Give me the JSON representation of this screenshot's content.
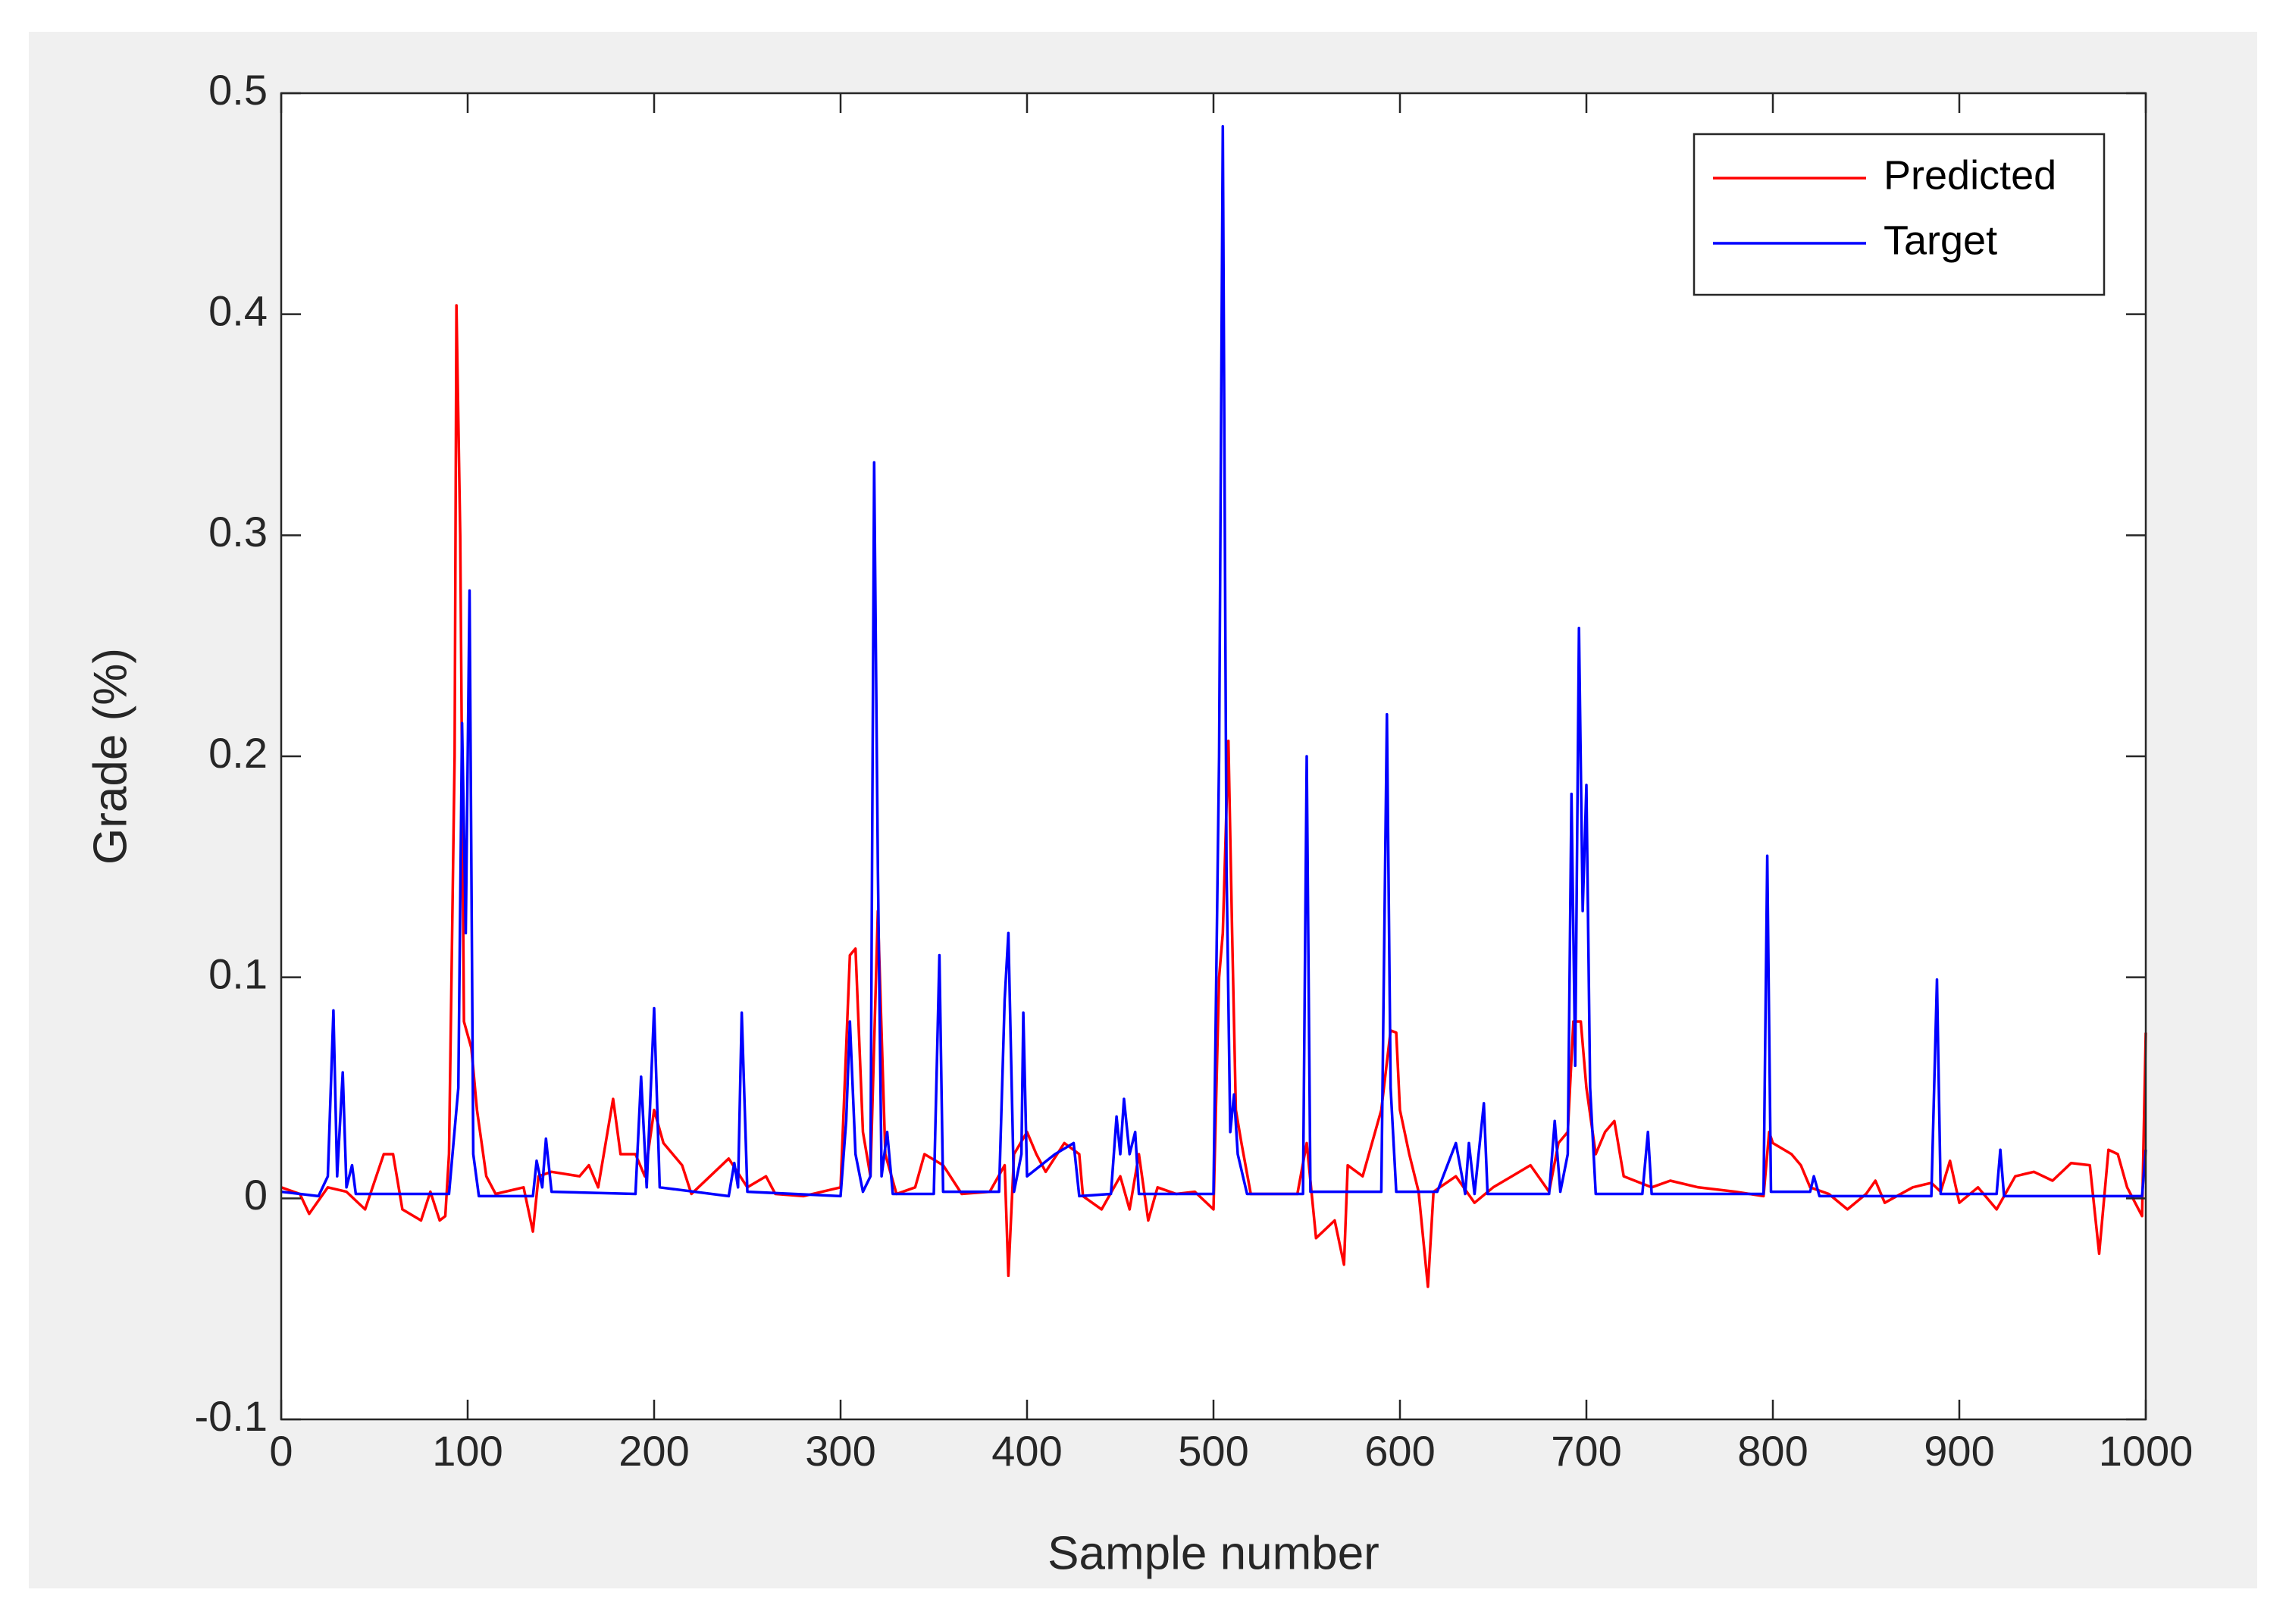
{
  "chart_data": {
    "type": "line",
    "xlabel": "Sample number",
    "ylabel": "Grade (%)",
    "xlim": [
      0,
      1000
    ],
    "xticks": [
      0,
      100,
      200,
      300,
      400,
      500,
      600,
      700,
      800,
      900,
      1000
    ],
    "ylim": [
      -0.1,
      0.5
    ],
    "yticks": [
      -0.1,
      0,
      0.1,
      0.2,
      0.3,
      0.4,
      0.5
    ],
    "legend": "upper right",
    "series": [
      {
        "name": "Predicted",
        "color": "#ff0000",
        "x": [
          0,
          10,
          15,
          25,
          35,
          45,
          55,
          60,
          65,
          75,
          80,
          85,
          88,
          90,
          93,
          94,
          96,
          98,
          102,
          105,
          110,
          115,
          130,
          135,
          138,
          145,
          160,
          165,
          170,
          178,
          182,
          190,
          195,
          200,
          205,
          215,
          220,
          230,
          240,
          250,
          260,
          265,
          280,
          300,
          305,
          308,
          312,
          316,
          320,
          324,
          330,
          340,
          345,
          355,
          365,
          380,
          388,
          390,
          393,
          400,
          405,
          410,
          420,
          428,
          430,
          440,
          450,
          455,
          460,
          465,
          470,
          480,
          490,
          500,
          503,
          505,
          508,
          510,
          512,
          515,
          520,
          540,
          545,
          550,
          555,
          565,
          570,
          572,
          580,
          590,
          595,
          598,
          600,
          605,
          610,
          615,
          618,
          630,
          640,
          650,
          660,
          670,
          680,
          685,
          690,
          693,
          697,
          700,
          705,
          710,
          715,
          720,
          735,
          745,
          760,
          780,
          795,
          798,
          800,
          810,
          815,
          820,
          830,
          840,
          850,
          855,
          860,
          875,
          885,
          890,
          895,
          900,
          910,
          920,
          930,
          940,
          950,
          960,
          970,
          975,
          980,
          985,
          990,
          998,
          1000
        ],
        "values": [
          0.005,
          0.002,
          -0.007,
          0.005,
          0.003,
          -0.005,
          0.02,
          0.02,
          -0.005,
          -0.01,
          0.003,
          -0.01,
          -0.008,
          0.02,
          0.2,
          0.404,
          0.3,
          0.08,
          0.068,
          0.04,
          0.01,
          0.002,
          0.005,
          -0.015,
          0.01,
          0.012,
          0.01,
          0.015,
          0.005,
          0.045,
          0.02,
          0.02,
          0.01,
          0.04,
          0.025,
          0.015,
          0.002,
          0.01,
          0.018,
          0.005,
          0.01,
          0.002,
          0.001,
          0.005,
          0.11,
          0.113,
          0.03,
          0.01,
          0.13,
          0.02,
          0.002,
          0.005,
          0.02,
          0.015,
          0.002,
          0.003,
          0.015,
          -0.035,
          0.02,
          0.03,
          0.02,
          0.012,
          0.025,
          0.02,
          0.001,
          -0.005,
          0.01,
          -0.005,
          0.02,
          -0.01,
          0.005,
          0.002,
          0.003,
          -0.005,
          0.1,
          0.12,
          0.207,
          0.12,
          0.04,
          0.025,
          0.002,
          0.002,
          0.002,
          0.025,
          -0.018,
          -0.01,
          -0.03,
          0.015,
          0.01,
          0.04,
          0.076,
          0.075,
          0.04,
          0.02,
          0.003,
          -0.04,
          0.003,
          0.01,
          -0.002,
          0.005,
          0.01,
          0.015,
          0.003,
          0.025,
          0.03,
          0.08,
          0.08,
          0.05,
          0.02,
          0.03,
          0.035,
          0.01,
          0.005,
          0.008,
          0.005,
          0.003,
          0.001,
          0.03,
          0.025,
          0.02,
          0.015,
          0.005,
          0.002,
          -0.005,
          0.002,
          0.008,
          -0.002,
          0.005,
          0.007,
          0.003,
          0.017,
          -0.002,
          0.005,
          -0.005,
          0.01,
          0.012,
          0.008,
          0.016,
          0.015,
          -0.025,
          0.022,
          0.02,
          0.005,
          -0.008,
          0.075
        ]
      },
      {
        "name": "Target",
        "color": "#0000ff",
        "x": [
          0,
          20,
          25,
          28,
          30,
          33,
          35,
          38,
          40,
          80,
          90,
          95,
          97,
          99,
          101,
          103,
          106,
          135,
          137,
          140,
          142,
          145,
          190,
          193,
          196,
          200,
          203,
          240,
          243,
          245,
          247,
          250,
          300,
          303,
          305,
          308,
          312,
          316,
          318,
          320,
          322,
          325,
          328,
          350,
          353,
          355,
          385,
          388,
          390,
          393,
          397,
          398,
          400,
          415,
          425,
          428,
          445,
          448,
          450,
          452,
          455,
          458,
          460,
          500,
          503,
          505,
          507,
          509,
          511,
          513,
          518,
          548,
          550,
          552,
          590,
          593,
          595,
          598,
          620,
          630,
          635,
          637,
          640,
          645,
          647,
          680,
          683,
          686,
          690,
          692,
          694,
          696,
          698,
          700,
          702,
          705,
          730,
          733,
          735,
          795,
          797,
          799,
          820,
          822,
          825,
          885,
          888,
          890,
          920,
          922,
          924,
          998,
          1000
        ],
        "values": [
          0.003,
          0.001,
          0.01,
          0.085,
          0.01,
          0.057,
          0.005,
          0.015,
          0.002,
          0.002,
          0.002,
          0.05,
          0.215,
          0.12,
          0.275,
          0.02,
          0.001,
          0.001,
          0.017,
          0.005,
          0.027,
          0.003,
          0.002,
          0.055,
          0.005,
          0.086,
          0.005,
          0.001,
          0.016,
          0.005,
          0.084,
          0.003,
          0.001,
          0.035,
          0.08,
          0.02,
          0.003,
          0.01,
          0.333,
          0.15,
          0.01,
          0.03,
          0.002,
          0.002,
          0.11,
          0.003,
          0.003,
          0.09,
          0.12,
          0.003,
          0.02,
          0.084,
          0.01,
          0.02,
          0.025,
          0.001,
          0.002,
          0.037,
          0.02,
          0.045,
          0.02,
          0.03,
          0.002,
          0.002,
          0.2,
          0.485,
          0.15,
          0.03,
          0.047,
          0.02,
          0.002,
          0.002,
          0.2,
          0.003,
          0.003,
          0.219,
          0.05,
          0.003,
          0.003,
          0.025,
          0.002,
          0.025,
          0.002,
          0.043,
          0.002,
          0.002,
          0.035,
          0.003,
          0.02,
          0.183,
          0.06,
          0.258,
          0.13,
          0.187,
          0.05,
          0.002,
          0.002,
          0.03,
          0.002,
          0.002,
          0.155,
          0.003,
          0.003,
          0.01,
          0.001,
          0.001,
          0.099,
          0.002,
          0.002,
          0.022,
          0.001,
          0.001,
          0.022
        ]
      }
    ]
  }
}
